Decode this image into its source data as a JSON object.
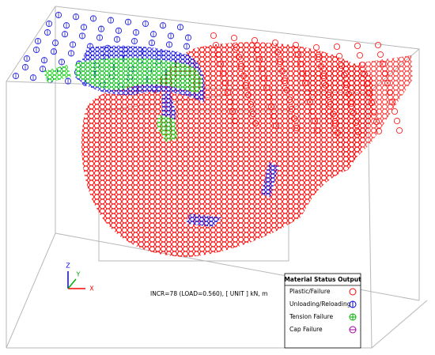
{
  "viewer": {
    "status": "INCR=78 (LOAD=0.560), [ UNIT ] kN, m",
    "axes": {
      "z": "Z",
      "y": "Y",
      "x": "X"
    },
    "legend": {
      "title": "Material Status Output",
      "items": [
        "Plastic/Failure",
        "Unloading/Reloading",
        "Tension Failure",
        "Cap Failure"
      ]
    }
  }
}
